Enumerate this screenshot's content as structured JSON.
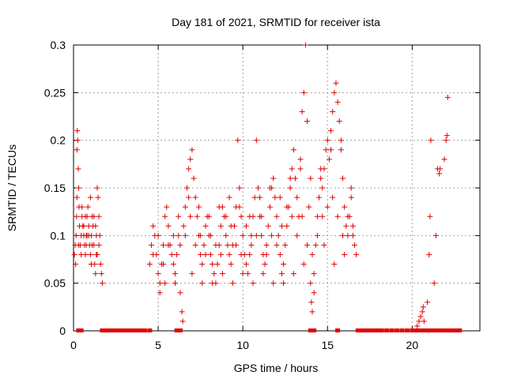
{
  "chart_data": {
    "type": "scatter",
    "title": "Day 181 of 2021, SRMTID for receiver ista",
    "xlabel": "GPS time / hours",
    "ylabel": "SRMTID / TECUs",
    "xlim": [
      0,
      24
    ],
    "ylim": [
      0,
      0.3
    ],
    "xticks": [
      "0",
      "5",
      "10",
      "15",
      "20"
    ],
    "yticks": [
      "0",
      "0.05",
      "0.1",
      "0.15",
      "0.2",
      "0.25",
      "0.3"
    ],
    "grid": true,
    "marker": "plus",
    "color": "#e00000",
    "series": [
      {
        "points": [
          [
            0.05,
            0.08
          ],
          [
            0.1,
            0.09
          ],
          [
            0.12,
            0.07
          ],
          [
            0.15,
            0.1
          ],
          [
            0.18,
            0.12
          ],
          [
            0.2,
            0.19
          ],
          [
            0.22,
            0.21
          ],
          [
            0.25,
            0.2
          ],
          [
            0.28,
            0.17
          ],
          [
            0.3,
            0.15
          ],
          [
            0.32,
            0.13
          ],
          [
            0.35,
            0.11
          ],
          [
            0.4,
            0.09
          ],
          [
            0.45,
            0.1
          ],
          [
            0.5,
            0.12
          ],
          [
            0.55,
            0.11
          ],
          [
            0.6,
            0.1
          ],
          [
            0.65,
            0.09
          ],
          [
            0.7,
            0.08
          ],
          [
            0.75,
            0.1
          ],
          [
            0.8,
            0.12
          ],
          [
            0.85,
            0.13
          ],
          [
            0.9,
            0.11
          ],
          [
            0.95,
            0.09
          ],
          [
            1.0,
            0.08
          ],
          [
            1.05,
            0.1
          ],
          [
            1.1,
            0.12
          ],
          [
            1.15,
            0.11
          ],
          [
            1.2,
            0.09
          ],
          [
            1.25,
            0.07
          ],
          [
            1.3,
            0.06
          ],
          [
            1.35,
            0.08
          ],
          [
            1.4,
            0.15
          ],
          [
            1.45,
            0.14
          ],
          [
            1.5,
            0.12
          ],
          [
            1.55,
            0.1
          ],
          [
            1.6,
            0.07
          ],
          [
            1.65,
            0.06
          ],
          [
            1.7,
            0.05
          ],
          [
            0.3,
            0.09
          ],
          [
            0.6,
            0.11
          ],
          [
            0.9,
            0.1
          ],
          [
            1.2,
            0.12
          ],
          [
            0.45,
            0.08
          ],
          [
            0.75,
            0.09
          ],
          [
            1.05,
            0.07
          ],
          [
            1.35,
            0.1
          ],
          [
            1.5,
            0.09
          ],
          [
            0.2,
            0.14
          ],
          [
            0.5,
            0.13
          ],
          [
            0.8,
            0.1
          ],
          [
            1.1,
            0.09
          ],
          [
            1.4,
            0.08
          ],
          [
            0.7,
            0.12
          ],
          [
            1.0,
            0.14
          ],
          [
            1.3,
            0.11
          ],
          [
            4.5,
            0.07
          ],
          [
            4.6,
            0.09
          ],
          [
            4.7,
            0.11
          ],
          [
            4.8,
            0.1
          ],
          [
            4.9,
            0.08
          ],
          [
            5.0,
            0.06
          ],
          [
            5.1,
            0.05
          ],
          [
            5.2,
            0.07
          ],
          [
            5.3,
            0.09
          ],
          [
            5.4,
            0.12
          ],
          [
            5.5,
            0.13
          ],
          [
            5.6,
            0.11
          ],
          [
            5.7,
            0.09
          ],
          [
            5.8,
            0.08
          ],
          [
            5.9,
            0.07
          ],
          [
            6.0,
            0.06
          ],
          [
            6.1,
            0.08
          ],
          [
            6.2,
            0.1
          ],
          [
            6.3,
            0.09
          ],
          [
            6.4,
            0.02
          ],
          [
            6.45,
            0.01
          ],
          [
            6.5,
            0.11
          ],
          [
            6.6,
            0.13
          ],
          [
            6.7,
            0.15
          ],
          [
            6.8,
            0.17
          ],
          [
            6.9,
            0.18
          ],
          [
            7.0,
            0.19
          ],
          [
            7.1,
            0.16
          ],
          [
            7.2,
            0.14
          ],
          [
            7.3,
            0.12
          ],
          [
            7.4,
            0.1
          ],
          [
            7.5,
            0.08
          ],
          [
            7.6,
            0.07
          ],
          [
            7.7,
            0.09
          ],
          [
            7.8,
            0.11
          ],
          [
            7.9,
            0.12
          ],
          [
            8.0,
            0.1
          ],
          [
            8.1,
            0.08
          ],
          [
            8.2,
            0.07
          ],
          [
            8.3,
            0.06
          ],
          [
            8.4,
            0.05
          ],
          [
            8.5,
            0.07
          ],
          [
            8.6,
            0.09
          ],
          [
            8.7,
            0.11
          ],
          [
            8.8,
            0.13
          ],
          [
            8.9,
            0.12
          ],
          [
            9.0,
            0.1
          ],
          [
            9.1,
            0.09
          ],
          [
            9.2,
            0.08
          ],
          [
            9.3,
            0.07
          ],
          [
            9.4,
            0.09
          ],
          [
            9.5,
            0.11
          ],
          [
            9.6,
            0.13
          ],
          [
            9.7,
            0.2
          ],
          [
            9.8,
            0.15
          ],
          [
            9.9,
            0.12
          ],
          [
            10.0,
            0.1
          ],
          [
            10.1,
            0.08
          ],
          [
            10.2,
            0.07
          ],
          [
            10.3,
            0.06
          ],
          [
            10.4,
            0.08
          ],
          [
            10.5,
            0.1
          ],
          [
            10.6,
            0.12
          ],
          [
            10.7,
            0.14
          ],
          [
            10.8,
            0.2
          ],
          [
            10.9,
            0.15
          ],
          [
            11.0,
            0.12
          ],
          [
            11.1,
            0.1
          ],
          [
            11.2,
            0.08
          ],
          [
            11.3,
            0.07
          ],
          [
            11.4,
            0.09
          ],
          [
            11.5,
            0.11
          ],
          [
            11.6,
            0.13
          ],
          [
            11.7,
            0.15
          ],
          [
            11.8,
            0.16
          ],
          [
            11.9,
            0.14
          ],
          [
            12.0,
            0.12
          ],
          [
            12.1,
            0.1
          ],
          [
            12.2,
            0.08
          ],
          [
            12.3,
            0.06
          ],
          [
            12.4,
            0.07
          ],
          [
            12.5,
            0.09
          ],
          [
            12.6,
            0.11
          ],
          [
            12.7,
            0.13
          ],
          [
            12.8,
            0.15
          ],
          [
            12.9,
            0.17
          ],
          [
            13.0,
            0.19
          ],
          [
            13.1,
            0.16
          ],
          [
            13.2,
            0.14
          ],
          [
            13.3,
            0.12
          ],
          [
            13.4,
            0.17
          ],
          [
            13.5,
            0.23
          ],
          [
            13.6,
            0.25
          ],
          [
            13.7,
            0.3
          ],
          [
            13.8,
            0.22
          ],
          [
            13.9,
            0.13
          ],
          [
            14.0,
            0.05
          ],
          [
            14.05,
            0.03
          ],
          [
            14.1,
            0.02
          ],
          [
            14.2,
            0.06
          ],
          [
            14.3,
            0.09
          ],
          [
            14.4,
            0.12
          ],
          [
            14.5,
            0.14
          ],
          [
            14.6,
            0.16
          ],
          [
            14.7,
            0.15
          ],
          [
            14.8,
            0.17
          ],
          [
            14.9,
            0.19
          ],
          [
            15.0,
            0.2
          ],
          [
            15.1,
            0.18
          ],
          [
            15.2,
            0.21
          ],
          [
            15.3,
            0.23
          ],
          [
            15.4,
            0.25
          ],
          [
            15.5,
            0.26
          ],
          [
            15.6,
            0.24
          ],
          [
            15.7,
            0.22
          ],
          [
            15.8,
            0.19
          ],
          [
            15.9,
            0.16
          ],
          [
            16.0,
            0.13
          ],
          [
            16.1,
            0.11
          ],
          [
            16.2,
            0.1
          ],
          [
            16.3,
            0.12
          ],
          [
            16.4,
            0.14
          ],
          [
            16.5,
            0.11
          ],
          [
            16.6,
            0.09
          ],
          [
            16.7,
            0.08
          ],
          [
            4.7,
            0.08
          ],
          [
            5.0,
            0.1
          ],
          [
            5.3,
            0.07
          ],
          [
            5.6,
            0.09
          ],
          [
            5.9,
            0.1
          ],
          [
            6.2,
            0.12
          ],
          [
            6.6,
            0.1
          ],
          [
            6.9,
            0.12
          ],
          [
            7.2,
            0.09
          ],
          [
            7.5,
            0.1
          ],
          [
            7.8,
            0.08
          ],
          [
            8.1,
            0.1
          ],
          [
            8.4,
            0.09
          ],
          [
            8.7,
            0.08
          ],
          [
            9.0,
            0.12
          ],
          [
            9.3,
            0.11
          ],
          [
            9.6,
            0.09
          ],
          [
            9.9,
            0.08
          ],
          [
            10.2,
            0.11
          ],
          [
            10.5,
            0.09
          ],
          [
            10.8,
            0.1
          ],
          [
            11.1,
            0.12
          ],
          [
            11.4,
            0.08
          ],
          [
            11.7,
            0.1
          ],
          [
            12.0,
            0.09
          ],
          [
            12.3,
            0.11
          ],
          [
            12.6,
            0.13
          ],
          [
            12.9,
            0.12
          ],
          [
            13.2,
            0.1
          ],
          [
            13.5,
            0.12
          ],
          [
            13.8,
            0.09
          ],
          [
            14.1,
            0.08
          ],
          [
            14.4,
            0.1
          ],
          [
            14.7,
            0.12
          ],
          [
            15.0,
            0.13
          ],
          [
            15.3,
            0.14
          ],
          [
            15.6,
            0.12
          ],
          [
            15.9,
            0.1
          ],
          [
            16.2,
            0.12
          ],
          [
            16.5,
            0.1
          ],
          [
            5.1,
            0.04
          ],
          [
            5.4,
            0.05
          ],
          [
            6.0,
            0.05
          ],
          [
            6.3,
            0.04
          ],
          [
            7.0,
            0.06
          ],
          [
            7.6,
            0.05
          ],
          [
            8.2,
            0.05
          ],
          [
            8.8,
            0.06
          ],
          [
            9.4,
            0.05
          ],
          [
            10.0,
            0.06
          ],
          [
            10.6,
            0.05
          ],
          [
            11.2,
            0.06
          ],
          [
            11.8,
            0.05
          ],
          [
            12.4,
            0.05
          ],
          [
            13.0,
            0.06
          ],
          [
            13.6,
            0.07
          ],
          [
            14.2,
            0.04
          ],
          [
            14.8,
            0.09
          ],
          [
            15.4,
            0.07
          ],
          [
            16.0,
            0.08
          ],
          [
            6.8,
            0.14
          ],
          [
            7.4,
            0.13
          ],
          [
            8.0,
            0.12
          ],
          [
            8.6,
            0.13
          ],
          [
            9.2,
            0.14
          ],
          [
            9.8,
            0.13
          ],
          [
            10.4,
            0.12
          ],
          [
            11.0,
            0.14
          ],
          [
            11.6,
            0.15
          ],
          [
            12.2,
            0.14
          ],
          [
            12.8,
            0.16
          ],
          [
            13.4,
            0.18
          ],
          [
            14.0,
            0.16
          ],
          [
            14.6,
            0.17
          ],
          [
            15.2,
            0.19
          ],
          [
            15.8,
            0.2
          ],
          [
            16.4,
            0.15
          ],
          [
            20.3,
            0.005
          ],
          [
            20.4,
            0.01
          ],
          [
            20.5,
            0.015
          ],
          [
            20.6,
            0.02
          ],
          [
            20.65,
            0.025
          ],
          [
            20.7,
            0.01
          ],
          [
            20.9,
            0.03
          ],
          [
            21.0,
            0.08
          ],
          [
            21.05,
            0.12
          ],
          [
            21.1,
            0.2
          ],
          [
            21.3,
            0.05
          ],
          [
            21.4,
            0.1
          ],
          [
            21.5,
            0.17
          ],
          [
            21.6,
            0.165
          ],
          [
            21.65,
            0.17
          ],
          [
            21.9,
            0.18
          ],
          [
            22.0,
            0.2
          ],
          [
            22.05,
            0.205
          ],
          [
            22.1,
            0.245
          ]
        ]
      }
    ],
    "zero_points": [
      0.3,
      0.45,
      1.7,
      1.8,
      1.9,
      2.0,
      2.1,
      2.2,
      2.3,
      2.4,
      2.5,
      2.6,
      2.7,
      2.8,
      2.9,
      3.0,
      3.1,
      3.2,
      3.3,
      3.4,
      3.5,
      3.6,
      3.7,
      3.8,
      3.9,
      4.0,
      4.1,
      4.2,
      4.5,
      6.1,
      6.3,
      14.0,
      14.2,
      15.6,
      16.8,
      17.0,
      17.2,
      17.4,
      17.6,
      17.8,
      18.0,
      18.2,
      18.5,
      18.8,
      19.1,
      19.4,
      19.7,
      20.0,
      20.2,
      20.4,
      20.6,
      20.8,
      21.0,
      21.2,
      21.4,
      21.6,
      21.8,
      22.0,
      22.2,
      22.4,
      22.6,
      22.8
    ]
  }
}
